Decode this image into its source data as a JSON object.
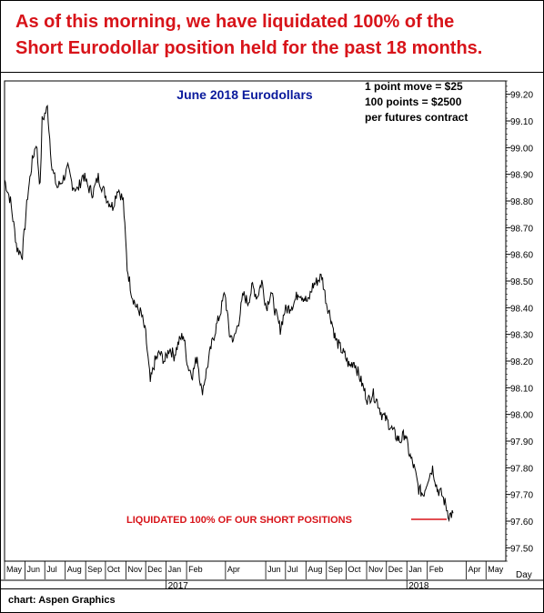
{
  "headline": {
    "line1": "As of this morning, we have liquidated 100% of the",
    "line2": "Short Eurodollar position held for the past 18 months."
  },
  "credit": "chart: Aspen Graphics",
  "colors": {
    "headline": "#d8141a",
    "title": "#0a1a9c",
    "annotation": "#d8141a",
    "price": "#000000"
  },
  "chart_data": {
    "type": "line",
    "title": "June 2018 Eurodollars",
    "notes": [
      "1 point move = $25",
      "100 points = $2500",
      "per futures contract"
    ],
    "annotation": "LIQUIDATED 100% OF OUR SHORT POSITIONS",
    "xlabel": "Day",
    "ylim": [
      97.45,
      99.25
    ],
    "y_ticks": [
      "97.50",
      "97.60",
      "97.70",
      "97.80",
      "97.90",
      "98.00",
      "98.10",
      "98.20",
      "98.30",
      "98.40",
      "98.50",
      "98.60",
      "98.70",
      "98.80",
      "98.90",
      "99.00",
      "99.10",
      "99.20"
    ],
    "x_range": [
      "2016-05-01",
      "2018-05-31"
    ],
    "month_labels": [
      {
        "date": "2016-05-01",
        "label": "May"
      },
      {
        "date": "2016-06-01",
        "label": "Jun"
      },
      {
        "date": "2016-07-01",
        "label": "Jul"
      },
      {
        "date": "2016-08-01",
        "label": "Aug"
      },
      {
        "date": "2016-09-01",
        "label": "Sep"
      },
      {
        "date": "2016-10-01",
        "label": "Oct"
      },
      {
        "date": "2016-11-01",
        "label": "Nov"
      },
      {
        "date": "2016-12-01",
        "label": "Dec"
      },
      {
        "date": "2017-01-01",
        "label": "Jan"
      },
      {
        "date": "2017-02-01",
        "label": "Feb"
      },
      {
        "date": "2017-04-01",
        "label": "Apr"
      },
      {
        "date": "2017-06-01",
        "label": "Jun"
      },
      {
        "date": "2017-07-01",
        "label": "Jul"
      },
      {
        "date": "2017-08-01",
        "label": "Aug"
      },
      {
        "date": "2017-09-01",
        "label": "Sep"
      },
      {
        "date": "2017-10-01",
        "label": "Oct"
      },
      {
        "date": "2017-11-01",
        "label": "Nov"
      },
      {
        "date": "2017-12-01",
        "label": "Dec"
      },
      {
        "date": "2018-01-01",
        "label": "Jan"
      },
      {
        "date": "2018-02-01",
        "label": "Feb"
      },
      {
        "date": "2018-04-01",
        "label": "Apr"
      },
      {
        "date": "2018-05-01",
        "label": "May"
      }
    ],
    "year_labels": [
      {
        "date": "2017-01-01",
        "label": "2017"
      },
      {
        "date": "2018-01-01",
        "label": "2018"
      }
    ],
    "series": [
      {
        "color": "#000000",
        "x": [
          "2016-05-01",
          "2016-05-10",
          "2016-05-20",
          "2016-05-28",
          "2016-06-05",
          "2016-06-12",
          "2016-06-18",
          "2016-06-24",
          "2016-06-27",
          "2016-07-05",
          "2016-07-12",
          "2016-07-20",
          "2016-07-28",
          "2016-08-05",
          "2016-08-12",
          "2016-08-20",
          "2016-08-28",
          "2016-09-05",
          "2016-09-12",
          "2016-09-20",
          "2016-09-28",
          "2016-10-05",
          "2016-10-12",
          "2016-10-20",
          "2016-10-28",
          "2016-11-03",
          "2016-11-10",
          "2016-11-17",
          "2016-11-24",
          "2016-12-01",
          "2016-12-08",
          "2016-12-15",
          "2016-12-22",
          "2016-12-30",
          "2017-01-06",
          "2017-01-13",
          "2017-01-20",
          "2017-01-27",
          "2017-02-03",
          "2017-02-10",
          "2017-02-17",
          "2017-02-24",
          "2017-03-03",
          "2017-03-10",
          "2017-03-17",
          "2017-03-24",
          "2017-03-31",
          "2017-04-07",
          "2017-04-14",
          "2017-04-21",
          "2017-04-28",
          "2017-05-05",
          "2017-05-12",
          "2017-05-19",
          "2017-05-26",
          "2017-06-02",
          "2017-06-09",
          "2017-06-16",
          "2017-06-23",
          "2017-06-30",
          "2017-07-07",
          "2017-07-14",
          "2017-07-21",
          "2017-07-28",
          "2017-08-04",
          "2017-08-11",
          "2017-08-18",
          "2017-08-25",
          "2017-09-01",
          "2017-09-08",
          "2017-09-15",
          "2017-09-22",
          "2017-09-29",
          "2017-10-06",
          "2017-10-13",
          "2017-10-20",
          "2017-10-27",
          "2017-11-03",
          "2017-11-10",
          "2017-11-17",
          "2017-11-24",
          "2017-12-01",
          "2017-12-08",
          "2017-12-15",
          "2017-12-22",
          "2017-12-29",
          "2018-01-05",
          "2018-01-12",
          "2018-01-19",
          "2018-01-26",
          "2018-02-02",
          "2018-02-09",
          "2018-02-16",
          "2018-02-23",
          "2018-03-01",
          "2018-03-06",
          "2018-03-12"
        ],
        "y": [
          98.88,
          98.8,
          98.62,
          98.6,
          98.82,
          98.95,
          99.02,
          98.85,
          99.1,
          99.15,
          98.92,
          98.85,
          98.88,
          98.92,
          98.86,
          98.84,
          98.9,
          98.85,
          98.83,
          98.89,
          98.84,
          98.8,
          98.78,
          98.85,
          98.8,
          98.55,
          98.45,
          98.4,
          98.38,
          98.3,
          98.12,
          98.2,
          98.23,
          98.2,
          98.25,
          98.22,
          98.27,
          98.3,
          98.18,
          98.15,
          98.22,
          98.08,
          98.16,
          98.25,
          98.32,
          98.38,
          98.46,
          98.3,
          98.28,
          98.35,
          98.45,
          98.42,
          98.48,
          98.44,
          98.5,
          98.4,
          98.46,
          98.38,
          98.32,
          98.39,
          98.4,
          98.42,
          98.46,
          98.44,
          98.42,
          98.48,
          98.5,
          98.52,
          98.42,
          98.36,
          98.28,
          98.25,
          98.22,
          98.18,
          98.2,
          98.15,
          98.1,
          98.05,
          98.08,
          98.05,
          98.0,
          97.98,
          97.95,
          97.92,
          97.9,
          97.93,
          97.85,
          97.8,
          97.72,
          97.7,
          97.76,
          97.8,
          97.72,
          97.7,
          97.66,
          97.62,
          97.63
        ]
      }
    ],
    "grid": false,
    "y_axis_position": "right"
  }
}
